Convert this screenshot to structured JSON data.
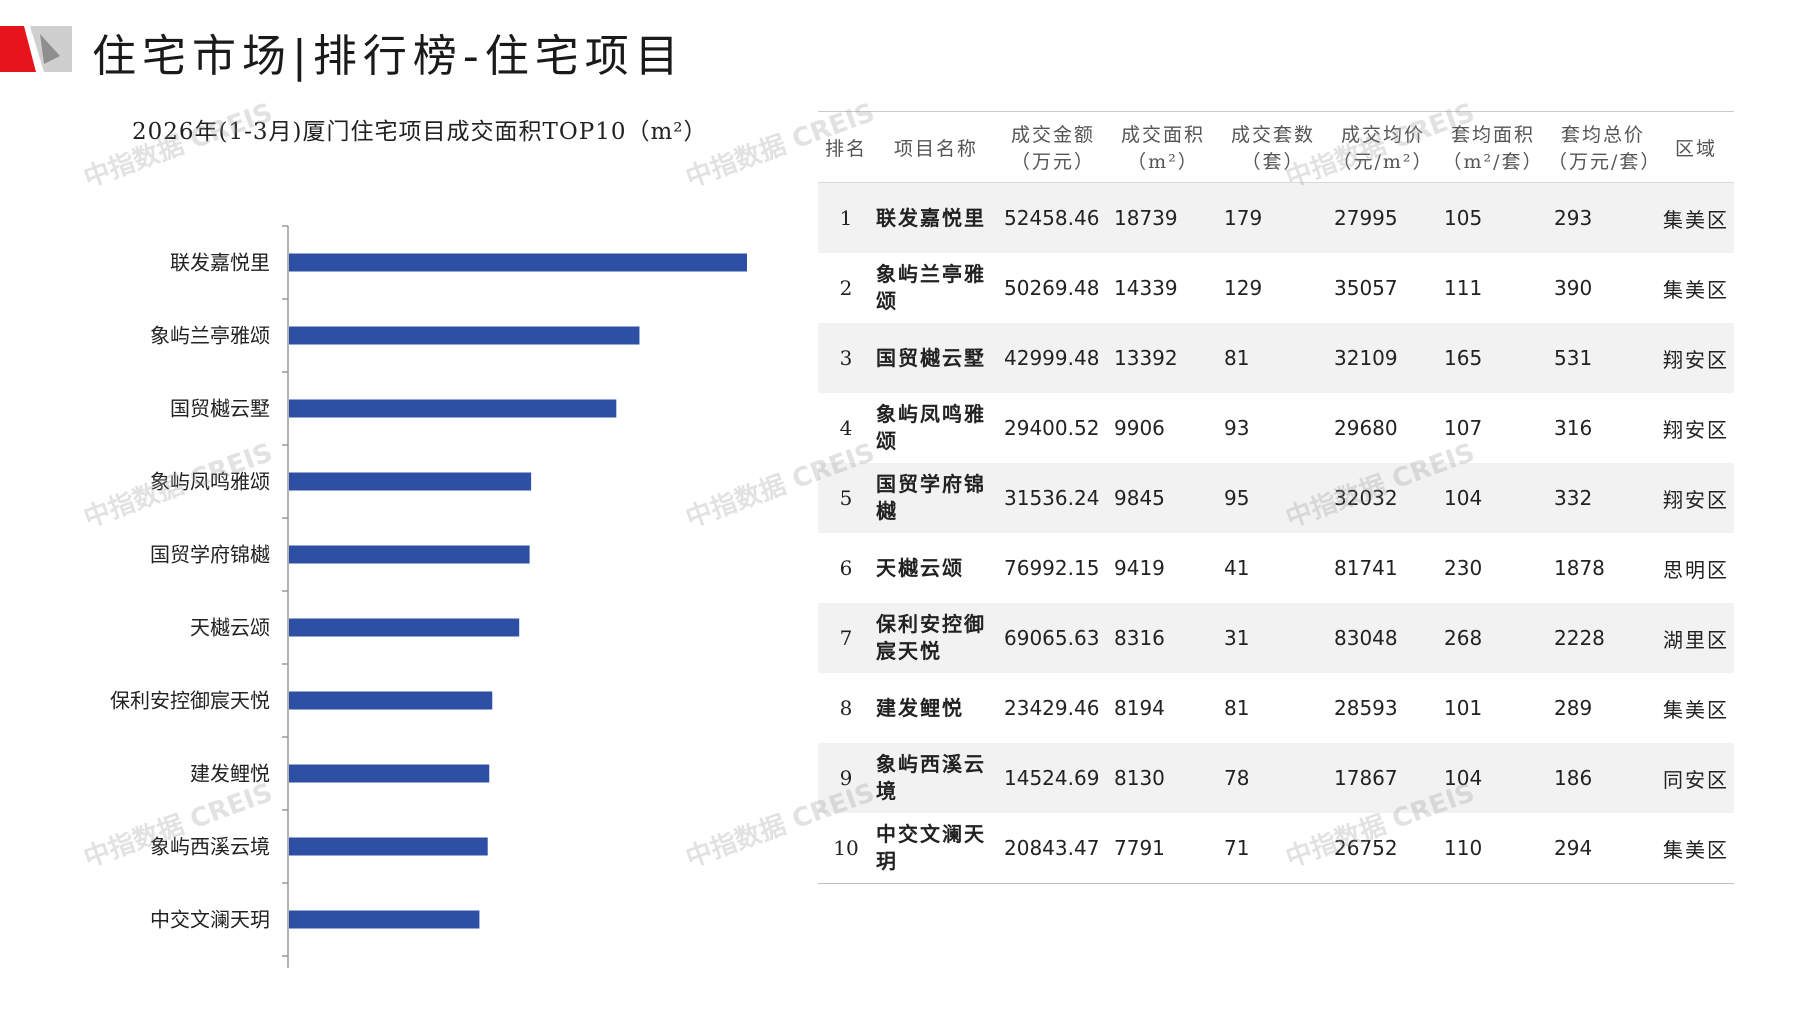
{
  "header": {
    "title": "住宅市场|排行榜-住宅项目"
  },
  "colors": {
    "bar": "#2e50a4",
    "accent_red": "#e8141b",
    "accent_gray": "#bdbdbd",
    "row_stripe": "#f2f2f2"
  },
  "watermark": "中指数据 CREIS",
  "chart_data": {
    "type": "bar",
    "orientation": "horizontal",
    "title": "2026年(1-3月)厦门住宅项目成交面积TOP10（m²）",
    "categories": [
      "联发嘉悦里",
      "象屿兰亭雅颂",
      "国贸樾云墅",
      "象屿凤鸣雅颂",
      "国贸学府锦樾",
      "天樾云颂",
      "保利安控御宸天悦",
      "建发鲤悦",
      "象屿西溪云境",
      "中交文澜天玥"
    ],
    "values": [
      18739,
      14339,
      13392,
      9906,
      9845,
      9419,
      8316,
      8194,
      8130,
      7791
    ],
    "xlim": [
      0,
      18739
    ],
    "grid": false,
    "legend": "none"
  },
  "table": {
    "headers": [
      [
        "排名"
      ],
      [
        "项目名称"
      ],
      [
        "成交金额",
        "（万元）"
      ],
      [
        "成交面积",
        "（m²）"
      ],
      [
        "成交套数",
        "（套）"
      ],
      [
        "成交均价",
        "（元/m²）"
      ],
      [
        "套均面积",
        "（m²/套）"
      ],
      [
        "套均总价",
        "（万元/套）"
      ],
      [
        "区域"
      ]
    ],
    "rows": [
      [
        "1",
        "联发嘉悦里",
        "52458.46",
        "18739",
        "179",
        "27995",
        "105",
        "293",
        "集美区"
      ],
      [
        "2",
        "象屿兰亭雅颂",
        "50269.48",
        "14339",
        "129",
        "35057",
        "111",
        "390",
        "集美区"
      ],
      [
        "3",
        "国贸樾云墅",
        "42999.48",
        "13392",
        "81",
        "32109",
        "165",
        "531",
        "翔安区"
      ],
      [
        "4",
        "象屿凤鸣雅颂",
        "29400.52",
        "9906",
        "93",
        "29680",
        "107",
        "316",
        "翔安区"
      ],
      [
        "5",
        "国贸学府锦樾",
        "31536.24",
        "9845",
        "95",
        "32032",
        "104",
        "332",
        "翔安区"
      ],
      [
        "6",
        "天樾云颂",
        "76992.15",
        "9419",
        "41",
        "81741",
        "230",
        "1878",
        "思明区"
      ],
      [
        "7",
        "保利安控御宸天悦",
        "69065.63",
        "8316",
        "31",
        "83048",
        "268",
        "2228",
        "湖里区"
      ],
      [
        "8",
        "建发鲤悦",
        "23429.46",
        "8194",
        "81",
        "28593",
        "101",
        "289",
        "集美区"
      ],
      [
        "9",
        "象屿西溪云境",
        "14524.69",
        "8130",
        "78",
        "17867",
        "104",
        "186",
        "同安区"
      ],
      [
        "10",
        "中交文澜天玥",
        "20843.47",
        "7791",
        "71",
        "26752",
        "110",
        "294",
        "集美区"
      ]
    ]
  }
}
